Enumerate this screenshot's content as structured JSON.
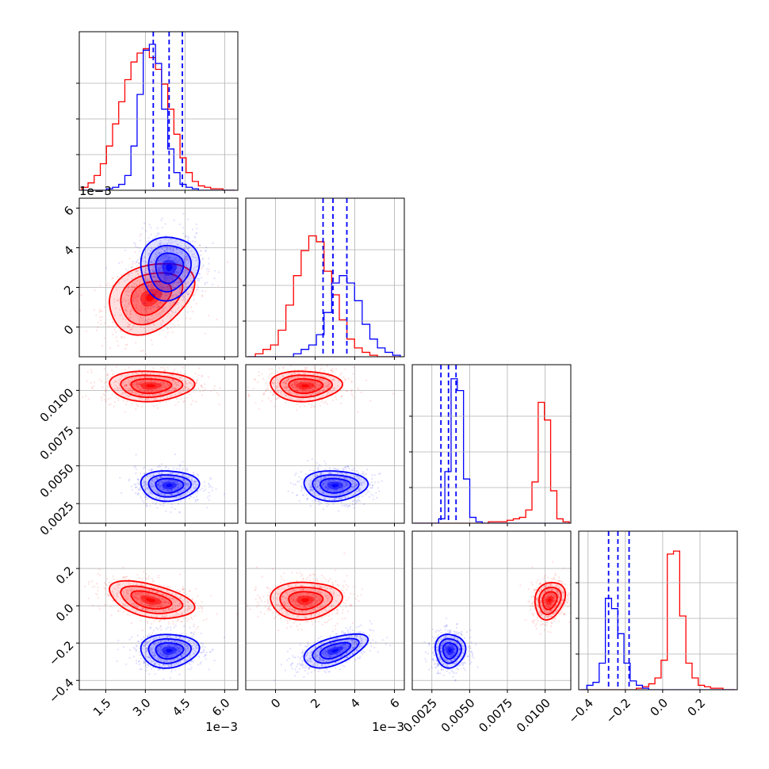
{
  "figure": {
    "colors": {
      "series_a": "#ff0000",
      "series_b": "#0000ff",
      "grid": "#b0b0b0"
    },
    "params": [
      {
        "range": [
          0.5,
          6.5
        ],
        "scale_text": "1e−3",
        "ticks": [
          1.5,
          3.0,
          4.5,
          6.0
        ],
        "tick_labels": [
          "1.5",
          "3.0",
          "4.5",
          "6.0"
        ]
      },
      {
        "range": [
          -1.5,
          6.5
        ],
        "scale_text": "1e−3",
        "ticks": [
          0,
          2,
          4,
          6
        ],
        "tick_labels": [
          "0",
          "2",
          "4",
          "6"
        ]
      },
      {
        "range": [
          0.0012,
          0.0117
        ],
        "scale_text": "",
        "ticks": [
          0.0025,
          0.005,
          0.0075,
          0.01
        ],
        "tick_labels": [
          "0.0025",
          "0.0050",
          "0.0075",
          "0.0100"
        ]
      },
      {
        "range": [
          -0.45,
          0.4
        ],
        "scale_text": "",
        "ticks": [
          -0.4,
          -0.2,
          0.0,
          0.2
        ],
        "tick_labels": [
          "−0.4",
          "−0.2",
          "0.0",
          "0.2"
        ]
      }
    ]
  },
  "chart_data": {
    "type": "scatter",
    "description_kind": "corner",
    "grid": true,
    "series": [
      {
        "color": "#ff0000",
        "means": [
          3.2,
          1.5,
          0.0103,
          0.03
        ],
        "sds": [
          0.8,
          0.9,
          0.0005,
          0.05
        ],
        "hist": [
          {
            "lo": 0.6,
            "hi": 6.4,
            "counts": [
              0.02,
              0.05,
              0.1,
              0.18,
              0.3,
              0.45,
              0.6,
              0.75,
              0.87,
              0.93,
              0.96,
              0.9,
              0.82,
              0.72,
              0.55,
              0.38,
              0.22,
              0.12,
              0.06,
              0.03,
              0.02,
              0.01,
              0.01,
              0.0,
              0.0
            ]
          },
          {
            "lo": -1.4,
            "hi": 6.3,
            "counts": [
              0.0,
              0.02,
              0.05,
              0.08,
              0.18,
              0.35,
              0.55,
              0.72,
              0.82,
              0.78,
              0.58,
              0.42,
              0.25,
              0.12,
              0.06,
              0.03,
              0.01,
              0.0,
              0.0,
              0.0
            ]
          },
          {
            "lo": 0.0013,
            "hi": 0.0116,
            "counts": [
              0,
              0,
              0,
              0,
              0,
              0,
              0,
              0,
              0,
              0,
              0,
              0,
              0.01,
              0.01,
              0.01,
              0.02,
              0.03,
              0.04,
              0.09,
              0.28,
              0.82,
              0.7,
              0.22,
              0.03,
              0.01
            ]
          },
          {
            "lo": -0.44,
            "hi": 0.39,
            "counts": [
              0,
              0,
              0,
              0,
              0,
              0,
              0,
              0,
              0,
              0.01,
              0.02,
              0.04,
              0.08,
              0.2,
              0.92,
              0.94,
              0.5,
              0.18,
              0.08,
              0.03,
              0.02,
              0.01,
              0.01,
              0.0,
              0.0
            ]
          }
        ],
        "pairs": [
          {
            "ij": [
              1,
              0
            ],
            "rho": 0.3
          },
          {
            "ij": [
              2,
              0
            ],
            "rho": 0.0
          },
          {
            "ij": [
              2,
              1
            ],
            "rho": 0.0
          },
          {
            "ij": [
              3,
              0
            ],
            "rho": -0.45
          },
          {
            "ij": [
              3,
              1
            ],
            "rho": 0.05
          },
          {
            "ij": [
              3,
              2
            ],
            "rho": 0.2
          }
        ]
      },
      {
        "color": "#0000ff",
        "means": [
          3.9,
          3.0,
          0.0037,
          -0.24
        ],
        "sds": [
          0.55,
          0.8,
          0.0005,
          0.045
        ],
        "quantiles": [
          [
            3.3,
            3.9,
            4.4
          ],
          [
            2.4,
            2.9,
            3.6
          ],
          [
            0.0031,
            0.0036,
            0.0041
          ],
          [
            -0.29,
            -0.24,
            -0.18
          ]
        ],
        "hist": [
          {
            "lo": 0.6,
            "hi": 6.4,
            "counts": [
              0,
              0,
              0,
              0,
              0.01,
              0.02,
              0.04,
              0.1,
              0.3,
              0.65,
              0.95,
              0.99,
              0.86,
              0.55,
              0.28,
              0.12,
              0.04,
              0.02,
              0.01,
              0,
              0,
              0,
              0,
              0,
              0
            ]
          },
          {
            "lo": -1.4,
            "hi": 6.3,
            "counts": [
              0,
              0,
              0,
              0,
              0,
              0,
              0.02,
              0.05,
              0.08,
              0.15,
              0.3,
              0.5,
              0.55,
              0.5,
              0.38,
              0.22,
              0.12,
              0.06,
              0.03,
              0.01
            ]
          },
          {
            "lo": 0.0013,
            "hi": 0.0116,
            "counts": [
              0,
              0,
              0,
              0,
              0.03,
              0.35,
              0.98,
              0.9,
              0.3,
              0.04,
              0.01,
              0,
              0,
              0,
              0,
              0,
              0,
              0,
              0,
              0,
              0,
              0,
              0,
              0,
              0
            ]
          },
          {
            "lo": -0.44,
            "hi": 0.39,
            "counts": [
              0,
              0.03,
              0.05,
              0.18,
              0.62,
              0.55,
              0.38,
              0.18,
              0.06,
              0.03,
              0.01,
              0.0,
              0,
              0,
              0,
              0,
              0,
              0,
              0,
              0,
              0,
              0,
              0,
              0,
              0
            ]
          }
        ],
        "pairs": [
          {
            "ij": [
              1,
              0
            ],
            "rho": 0.05
          },
          {
            "ij": [
              2,
              0
            ],
            "rho": 0.0
          },
          {
            "ij": [
              2,
              1
            ],
            "rho": 0.0
          },
          {
            "ij": [
              3,
              0
            ],
            "rho": 0.05
          },
          {
            "ij": [
              3,
              1
            ],
            "rho": 0.55
          },
          {
            "ij": [
              3,
              2
            ],
            "rho": 0.0
          }
        ]
      }
    ]
  }
}
